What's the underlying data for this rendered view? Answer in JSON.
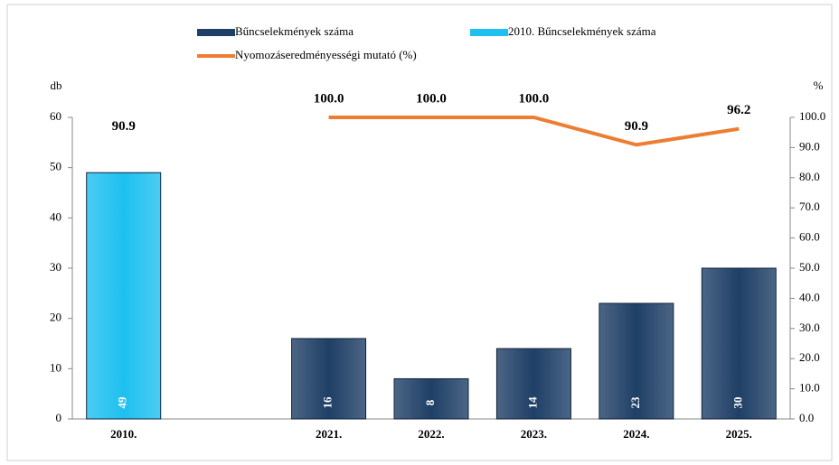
{
  "chart_data": {
    "type": "bar",
    "categories": [
      "2010.",
      null,
      "2021.",
      "2022.",
      "2023.",
      "2024.",
      "2025."
    ],
    "series": [
      {
        "name": "Bűncselekmények száma",
        "color": "#1f3f66",
        "values": [
          null,
          null,
          16,
          8,
          14,
          23,
          30
        ]
      },
      {
        "name": "2010. Bűncselekmények száma",
        "color": "#1ec0f0",
        "values": [
          49,
          null,
          null,
          null,
          null,
          null,
          null
        ]
      },
      {
        "name": "Nyomozáseredményességi mutató (%)",
        "color": "#ed7d31",
        "type": "line",
        "axis": "y2",
        "values": [
          90.9,
          null,
          100,
          100,
          100,
          90.9,
          96.2
        ],
        "value_labels": [
          "90.9",
          null,
          "100.0",
          "100.0",
          "100.0",
          "90.9",
          "96.2"
        ]
      }
    ],
    "ylabel": "db",
    "y2label": "%",
    "ylim": [
      0,
      60
    ],
    "yticks": [
      0,
      10,
      20,
      30,
      40,
      50,
      60
    ],
    "y2lim": [
      0,
      100
    ],
    "y2ticks": [
      {
        "value": 0,
        "label": "0.0"
      },
      {
        "value": 10,
        "label": "10.0"
      },
      {
        "value": 20,
        "label": "20.0"
      },
      {
        "value": 30,
        "label": "30.0"
      },
      {
        "value": 40,
        "label": "40.0"
      },
      {
        "value": 50,
        "label": "50.0"
      },
      {
        "value": 60,
        "label": "60.0"
      },
      {
        "value": 70,
        "label": "70.0"
      },
      {
        "value": 80,
        "label": "80.0"
      },
      {
        "value": 90,
        "label": "90.0"
      },
      {
        "value": 100,
        "label": "100.0"
      }
    ],
    "legend": "top"
  }
}
